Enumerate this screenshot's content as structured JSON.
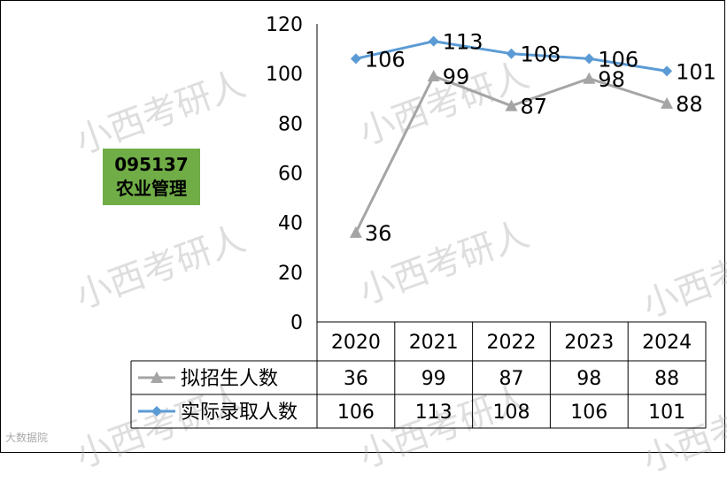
{
  "label": {
    "code": "095137",
    "name": "农业管理"
  },
  "watermark": "小西考研人",
  "footer_logo": "大数据院",
  "chart_data": {
    "type": "line",
    "categories": [
      "2020",
      "2021",
      "2022",
      "2023",
      "2024"
    ],
    "series": [
      {
        "name": "拟招生人数",
        "values": [
          36,
          99,
          87,
          98,
          88
        ],
        "color": "#a5a5a5",
        "marker": "triangle"
      },
      {
        "name": "实际录取人数",
        "values": [
          106,
          113,
          108,
          106,
          101
        ],
        "color": "#5b9bd5",
        "marker": "diamond"
      }
    ],
    "ylim": [
      0,
      120
    ],
    "yticks": [
      "0",
      "20",
      "40",
      "60",
      "80",
      "100",
      "120"
    ],
    "grid": false,
    "legend": "data-table"
  }
}
